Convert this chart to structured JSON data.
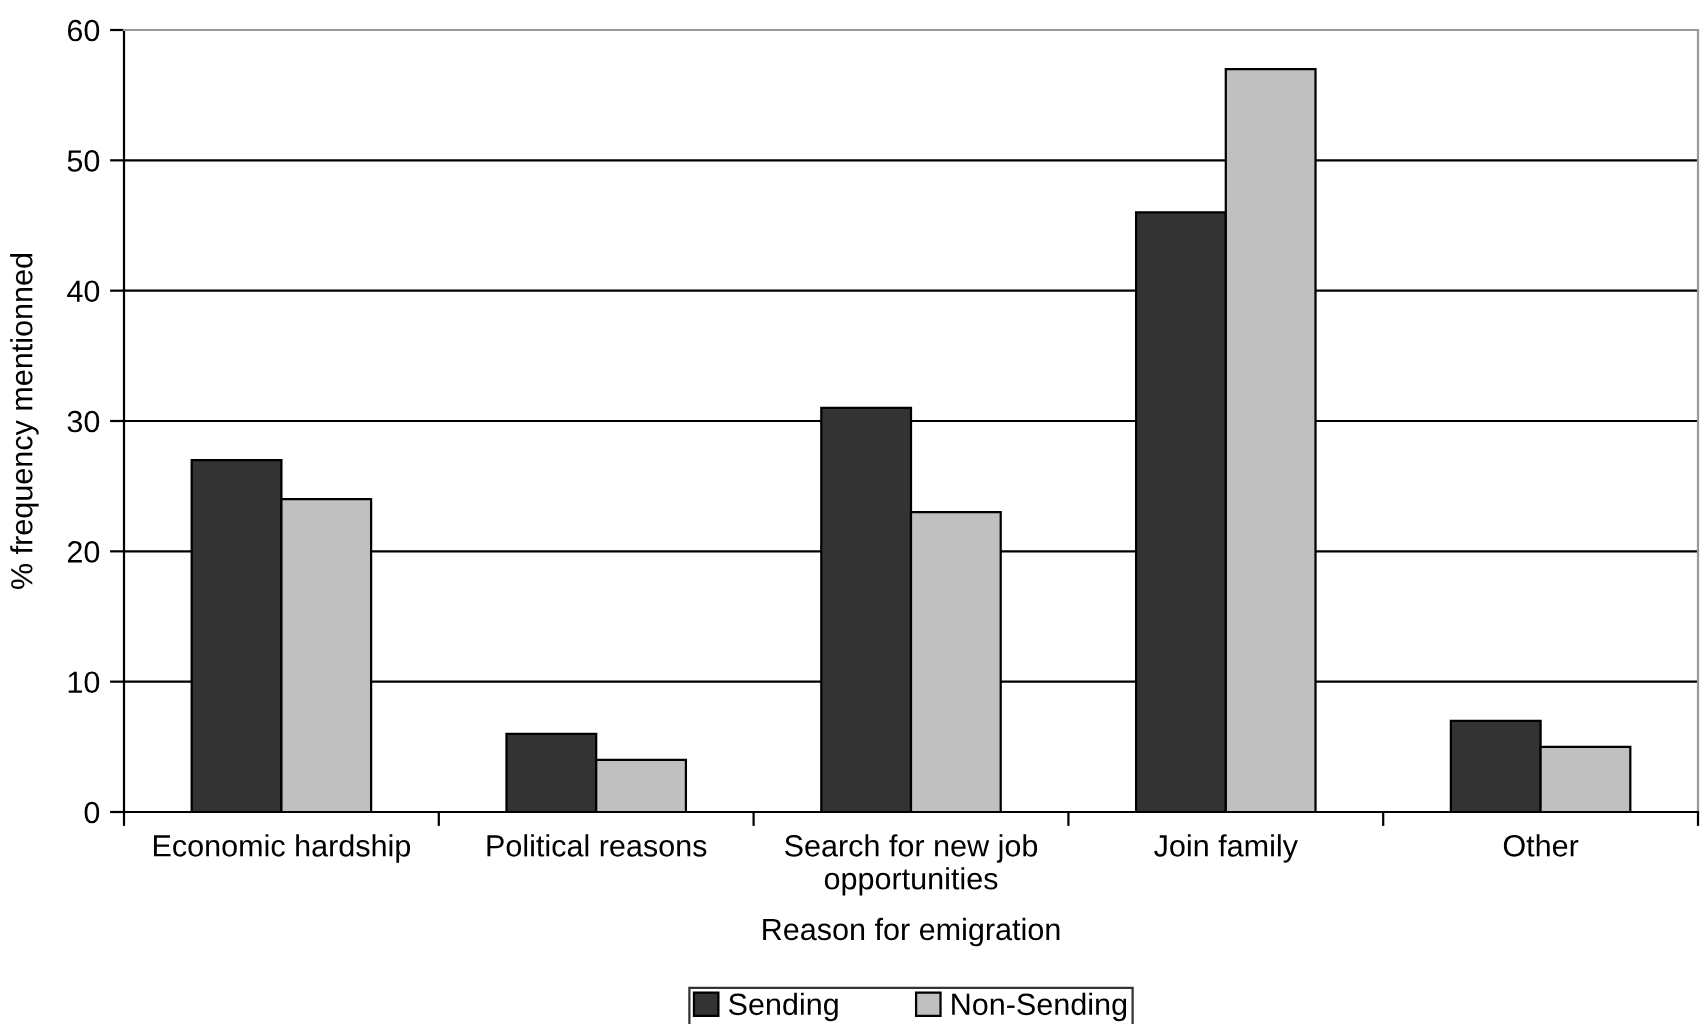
{
  "chart_data": {
    "type": "bar",
    "xlabel": "Reason for emigration",
    "ylabel": "% frequency mentionned",
    "categories": [
      "Economic hardship",
      "Political reasons",
      "Search for new job\nopportunities",
      "Join family",
      "Other"
    ],
    "series": [
      {
        "name": "Sending",
        "color": "#333333",
        "values": [
          27,
          6,
          31,
          46,
          7
        ]
      },
      {
        "name": "Non-Sending",
        "color": "#c0c0c0",
        "values": [
          24,
          4,
          23,
          57,
          5
        ]
      }
    ],
    "ylim": [
      0,
      60
    ],
    "yticks": [
      0,
      10,
      20,
      30,
      40,
      50,
      60
    ],
    "grid": "y",
    "legend": "bottom"
  }
}
